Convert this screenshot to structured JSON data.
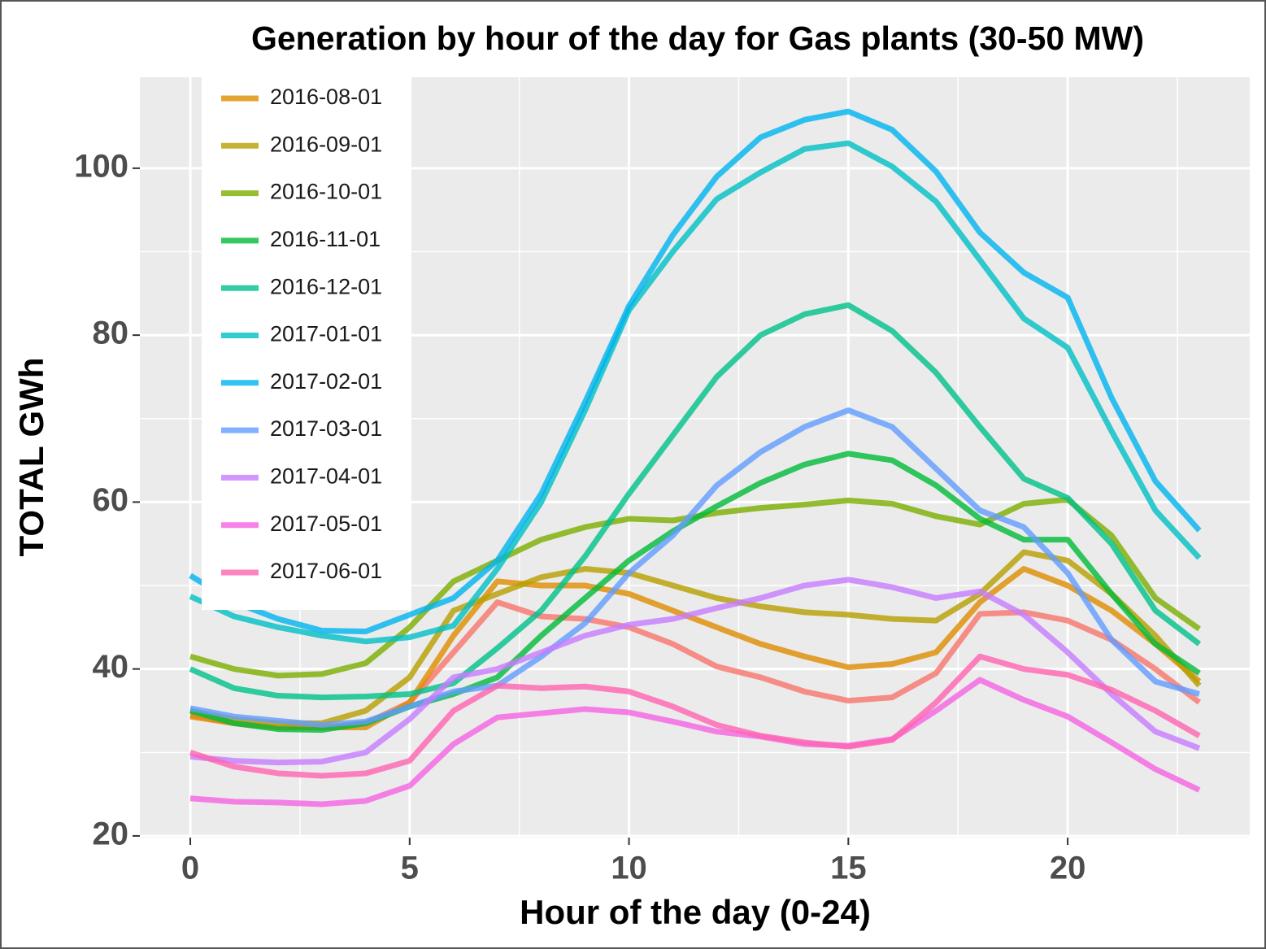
{
  "chart_data": {
    "type": "line",
    "title": "Generation by hour of the day for Gas plants (30-50 MW)",
    "x_label": "Hour of the day (0-24)",
    "y_label": "TOTAL GWh",
    "x": [
      0,
      1,
      2,
      3,
      4,
      5,
      6,
      7,
      8,
      9,
      10,
      11,
      12,
      13,
      14,
      15,
      16,
      17,
      18,
      19,
      20,
      21,
      22,
      23
    ],
    "xlim": [
      -1.15,
      24.15
    ],
    "xticks": [
      0,
      5,
      10,
      15,
      20
    ],
    "xminor": [
      2.5,
      7.5,
      12.5,
      17.5,
      22.5
    ],
    "ylim": [
      19.8,
      110.9
    ],
    "yticks": [
      20,
      40,
      60,
      80,
      100
    ],
    "yminor": [
      30,
      50,
      70,
      90
    ],
    "grid": true,
    "series": [
      {
        "color": "#F8766D",
        "values": [
          34.5,
          33.5,
          33,
          33,
          33.5,
          36,
          42,
          48,
          46.3,
          46,
          45,
          43,
          40.3,
          39,
          37.3,
          36.2,
          36.6,
          39.5,
          46.6,
          46.8,
          45.8,
          43.5,
          40,
          36
        ]
      },
      {
        "name": "2016-08-01",
        "color": "#DE8C00",
        "values": [
          34.3,
          33.5,
          33,
          33,
          33,
          36,
          44,
          50.5,
          50,
          50,
          49,
          47,
          45,
          43,
          41.5,
          40.2,
          40.6,
          42,
          48,
          52,
          50,
          47,
          43,
          38.5
        ]
      },
      {
        "name": "2016-09-01",
        "color": "#B79F00",
        "values": [
          35,
          34,
          33.5,
          33.5,
          35,
          39,
          47,
          49,
          51,
          52,
          51.5,
          50,
          48.5,
          47.5,
          46.8,
          46.5,
          46,
          45.8,
          49,
          54,
          53,
          49,
          44,
          38
        ]
      },
      {
        "name": "2016-10-01",
        "color": "#7CAE00",
        "values": [
          41.5,
          40,
          39.2,
          39.4,
          40.7,
          45,
          50.5,
          53,
          55.5,
          57,
          58,
          57.8,
          58.7,
          59.3,
          59.7,
          60.2,
          59.8,
          58.3,
          57.3,
          59.8,
          60.3,
          56,
          48.5,
          44.8
        ]
      },
      {
        "name": "2016-11-01",
        "color": "#00BA38",
        "values": [
          35,
          33.5,
          32.8,
          32.7,
          33.5,
          35.5,
          37,
          39,
          44,
          48.5,
          53,
          56.5,
          59.5,
          62.3,
          64.5,
          65.8,
          65,
          62,
          58,
          55.5,
          55.5,
          49,
          43,
          39.5
        ]
      },
      {
        "name": "2016-12-01",
        "color": "#00C08B",
        "values": [
          40,
          37.7,
          36.8,
          36.6,
          36.7,
          37,
          38.3,
          42.5,
          47,
          53.5,
          61,
          68,
          75,
          80,
          82.5,
          83.6,
          80.5,
          75.5,
          69,
          62.8,
          60.5,
          55,
          47,
          43
        ]
      },
      {
        "name": "2017-01-01",
        "color": "#00BFC4",
        "values": [
          48.7,
          46.3,
          45,
          44,
          43.3,
          43.8,
          45.2,
          52,
          60,
          71,
          83,
          90,
          96.3,
          99.5,
          102.3,
          103,
          100.2,
          96,
          89,
          82,
          78.5,
          68.5,
          59,
          53.3
        ]
      },
      {
        "name": "2017-02-01",
        "color": "#00B4F0",
        "values": [
          51.2,
          48,
          46,
          44.6,
          44.5,
          46.5,
          48.5,
          53,
          61,
          72,
          83.5,
          92,
          99,
          103.7,
          105.8,
          106.8,
          104.6,
          99.6,
          92.3,
          87.5,
          84.5,
          72.5,
          62.5,
          56.6
        ]
      },
      {
        "name": "2017-03-01",
        "color": "#619CFF",
        "values": [
          35.3,
          34.3,
          33.8,
          33.3,
          33.7,
          35.5,
          37.3,
          38,
          41.5,
          45.5,
          51.5,
          56,
          62,
          66,
          69,
          71,
          69,
          64,
          59,
          57,
          51.5,
          43.5,
          38.5,
          37
        ]
      },
      {
        "name": "2017-04-01",
        "color": "#C77CFF",
        "values": [
          29.5,
          29,
          28.8,
          28.9,
          30,
          34,
          39,
          40,
          42,
          44,
          45.3,
          46,
          47.3,
          48.5,
          50,
          50.7,
          49.8,
          48.5,
          49.3,
          46.5,
          42,
          37,
          32.5,
          30.5
        ]
      },
      {
        "name": "2017-05-01",
        "color": "#F564E3",
        "values": [
          24.5,
          24.1,
          24,
          23.8,
          24.2,
          26,
          31,
          34.2,
          34.7,
          35.2,
          34.8,
          33.7,
          32.5,
          31.9,
          31,
          30.8,
          31.6,
          35,
          38.7,
          36.3,
          34.3,
          31.2,
          28,
          25.5
        ]
      },
      {
        "name": "2017-06-01",
        "color": "#FF64B0",
        "values": [
          30,
          28.3,
          27.5,
          27.2,
          27.5,
          29,
          35,
          38,
          37.7,
          37.9,
          37.3,
          35.5,
          33.3,
          32,
          31.2,
          30.7,
          31.5,
          36,
          41.5,
          40,
          39.3,
          37.5,
          35,
          32
        ]
      }
    ]
  }
}
